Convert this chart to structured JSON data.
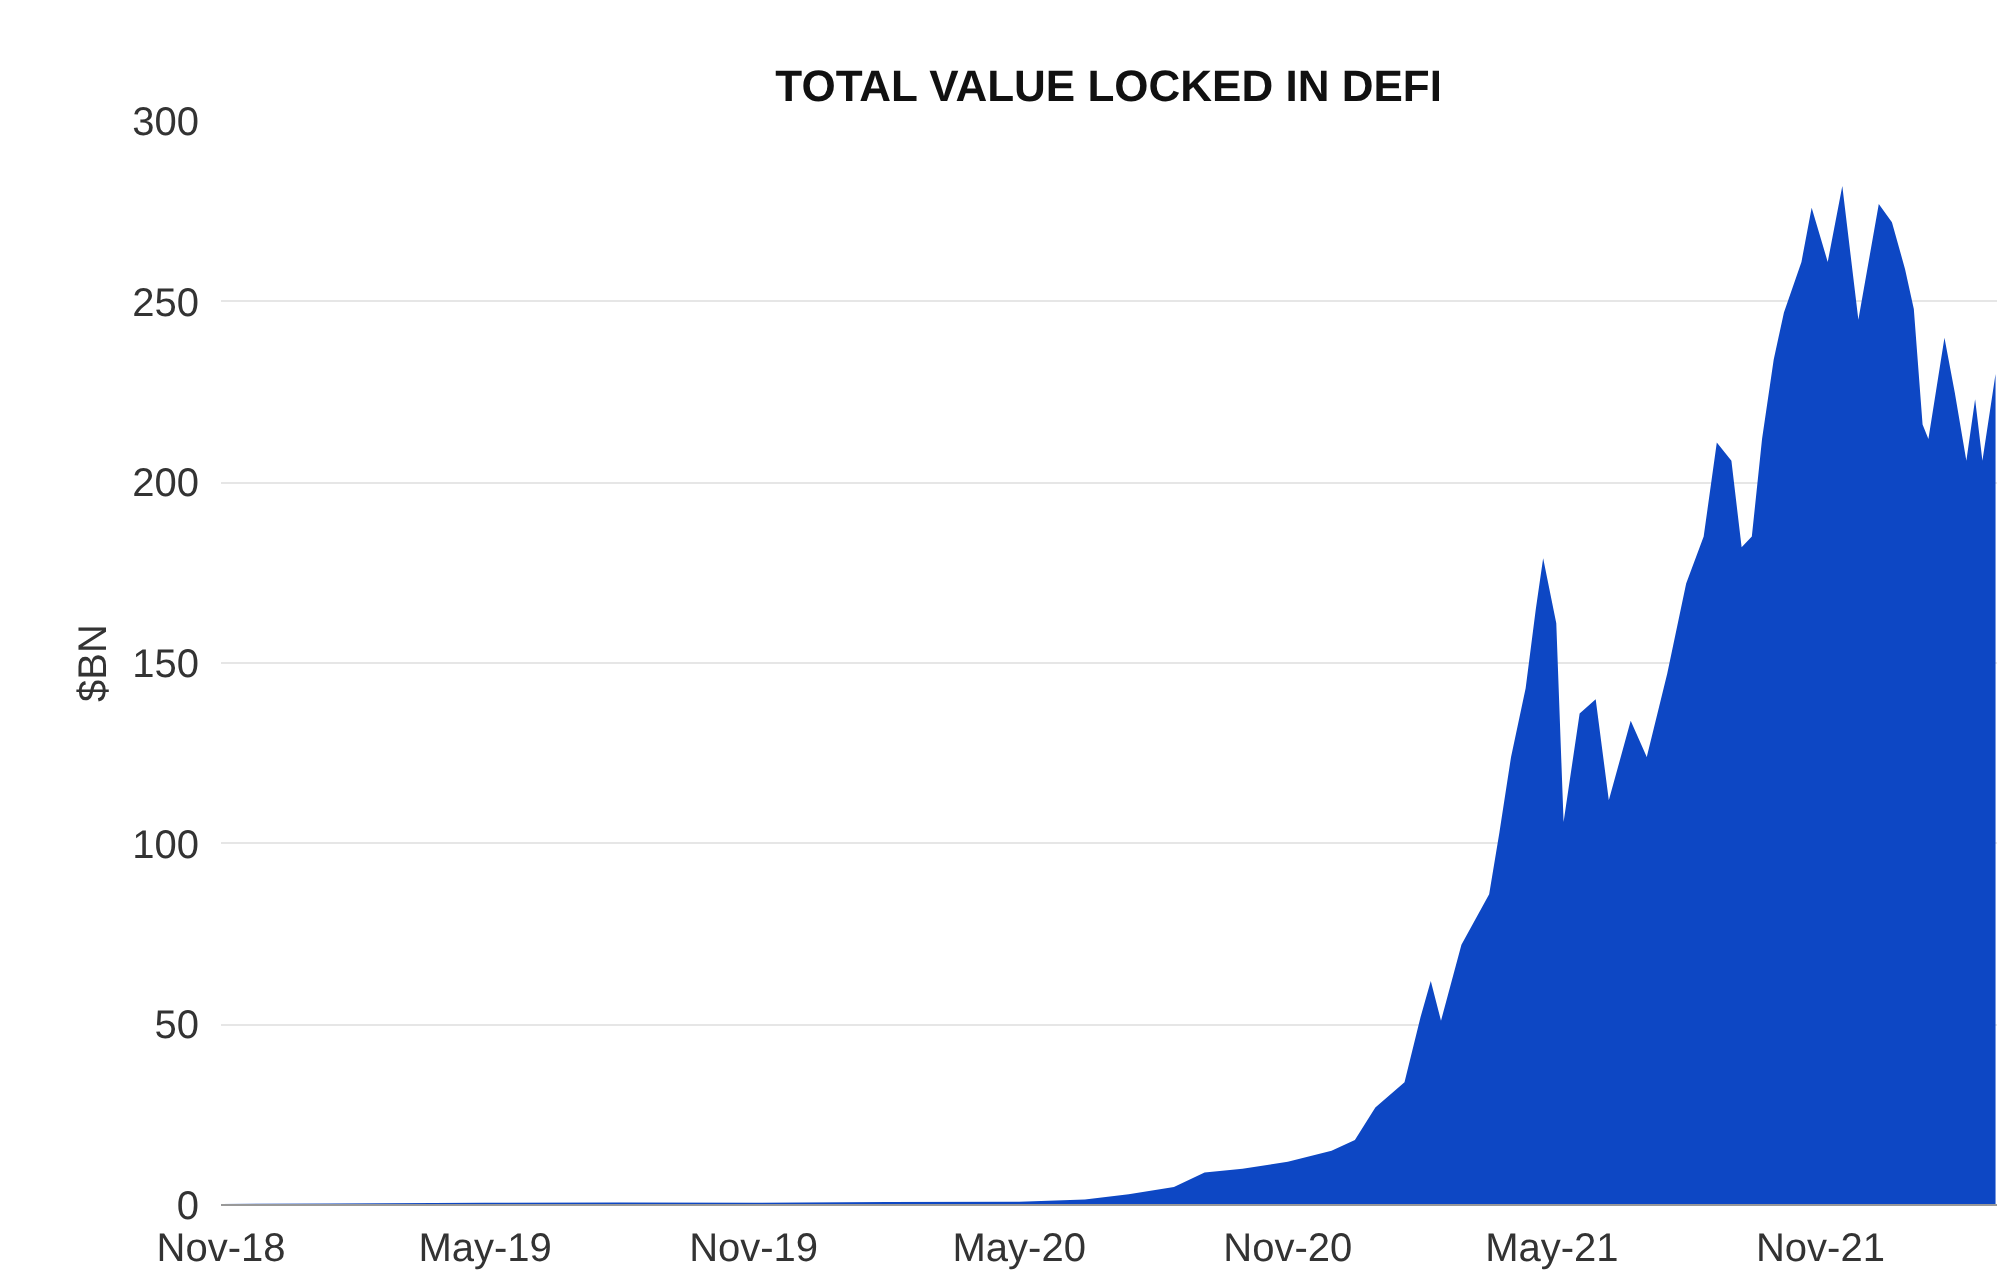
{
  "chart_data": {
    "type": "area",
    "title": "TOTAL VALUE LOCKED IN DEFI",
    "ylabel": "$BN",
    "x": [
      "2018-11-01",
      "2019-01-15",
      "2019-05-01",
      "2019-08-01",
      "2019-11-01",
      "2020-02-01",
      "2020-05-01",
      "2020-06-15",
      "2020-07-15",
      "2020-08-15",
      "2020-09-05",
      "2020-10-01",
      "2020-11-01",
      "2020-12-01",
      "2020-12-17",
      "2020-12-31",
      "2021-01-20",
      "2021-01-31",
      "2021-02-07",
      "2021-02-14",
      "2021-02-28",
      "2021-03-19",
      "2021-03-26",
      "2021-04-03",
      "2021-04-13",
      "2021-04-20",
      "2021-04-25",
      "2021-05-04",
      "2021-05-09",
      "2021-05-20",
      "2021-05-31",
      "2021-06-09",
      "2021-06-24",
      "2021-07-05",
      "2021-07-19",
      "2021-08-01",
      "2021-08-13",
      "2021-08-22",
      "2021-09-01",
      "2021-09-08",
      "2021-09-15",
      "2021-09-22",
      "2021-09-30",
      "2021-10-07",
      "2021-10-19",
      "2021-10-26",
      "2021-11-06",
      "2021-11-16",
      "2021-11-27",
      "2021-12-11",
      "2021-12-20",
      "2021-12-29",
      "2022-01-04",
      "2022-01-10",
      "2022-01-14",
      "2022-01-25",
      "2022-02-01",
      "2022-02-09",
      "2022-02-15",
      "2022-02-20",
      "2022-03-01"
    ],
    "series": [
      {
        "color": "#0d47c4",
        "values": [
          0.3,
          0.4,
          0.6,
          0.7,
          0.6,
          0.8,
          0.9,
          1.5,
          3,
          5,
          9,
          10,
          12,
          15,
          18,
          27,
          34,
          52,
          62,
          51,
          72,
          86,
          103,
          124,
          143,
          165,
          179,
          161,
          106,
          136,
          140,
          112,
          134,
          124,
          147,
          172,
          185,
          211,
          206,
          182,
          185,
          212,
          234,
          247,
          261,
          276,
          261,
          282,
          245,
          277,
          272,
          259,
          248,
          216,
          212,
          240,
          225,
          206,
          223,
          206,
          230
        ]
      }
    ],
    "xlim": [
      "2018-11-01",
      "2022-03-02"
    ],
    "xticks": [
      {
        "value": "2018-11-01",
        "label": "Nov-18"
      },
      {
        "value": "2019-05-01",
        "label": "May-19"
      },
      {
        "value": "2019-11-01",
        "label": "Nov-19"
      },
      {
        "value": "2020-05-01",
        "label": "May-20"
      },
      {
        "value": "2020-11-01",
        "label": "Nov-20"
      },
      {
        "value": "2021-05-01",
        "label": "May-21"
      },
      {
        "value": "2021-11-01",
        "label": "Nov-21"
      }
    ],
    "ylim": [
      0,
      300
    ],
    "yticks": [
      0,
      50,
      100,
      150,
      200,
      250,
      300
    ],
    "grid": "y"
  }
}
